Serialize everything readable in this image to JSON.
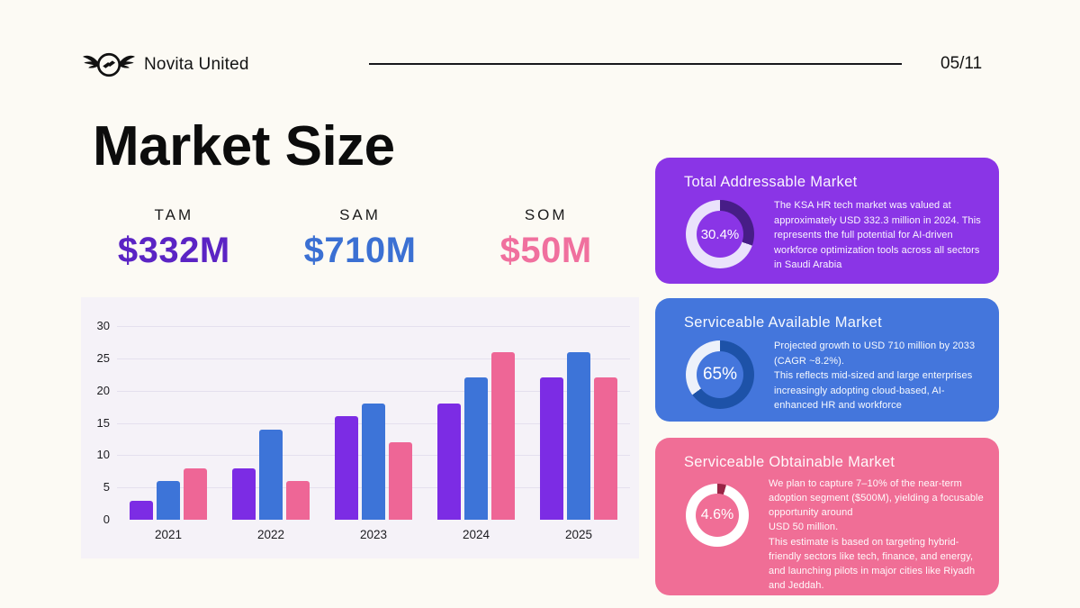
{
  "header": {
    "brand": "Novita United",
    "page_number": "05/11"
  },
  "title": "Market Size",
  "metrics": [
    {
      "label": "TAM",
      "value": "$332M",
      "color": "#5b24c4"
    },
    {
      "label": "SAM",
      "value": "$710M",
      "color": "#3b70d3"
    },
    {
      "label": "SOM",
      "value": "$50M",
      "color": "#f0709e"
    }
  ],
  "chart_data": {
    "type": "bar",
    "title": "",
    "xlabel": "",
    "ylabel": "",
    "categories": [
      "2021",
      "2022",
      "2023",
      "2024",
      "2025"
    ],
    "series": [
      {
        "name": "TAM",
        "color": "#7c2ce4",
        "values": [
          3,
          8,
          16,
          18,
          22
        ]
      },
      {
        "name": "SAM",
        "color": "#3d74d8",
        "values": [
          6,
          14,
          18,
          22,
          26
        ]
      },
      {
        "name": "SOM",
        "color": "#ee6696",
        "values": [
          8,
          6,
          12,
          26,
          22
        ]
      }
    ],
    "ylim": [
      0,
      30
    ],
    "yticks": [
      0,
      5,
      10,
      15,
      20,
      25,
      30
    ],
    "grid": true,
    "legend": "none",
    "background": "#f5f2f8"
  },
  "cards": [
    {
      "title": "Total Addressable Market",
      "percent_label": "30.4%",
      "percent_value": 30.4,
      "bg": "#8a35e6",
      "ring_track": "#eae2fb",
      "ring_arc": "#471d87",
      "body": "The KSA HR tech market was valued at approximately USD 332.3 million in 2024. This represents the full potential for AI-driven workforce optimization tools across all sectors in Saudi Arabia"
    },
    {
      "title": "Serviceable Available Market",
      "percent_label": "65%",
      "percent_value": 65,
      "bg": "#4476dc",
      "ring_track": "#edf1fa",
      "ring_arc": "#1d52a8",
      "body": "Projected growth to USD 710 million by 2033 (CAGR ~8.2%).\nThis reflects mid-sized and large enterprises increasingly adopting cloud-based, AI-enhanced HR and workforce"
    },
    {
      "title": "Serviceable Obtainable Market",
      "percent_label": "4.6%",
      "percent_value": 4.6,
      "bg": "#f06e96",
      "ring_track": "#ffffff",
      "ring_arc": "#992445",
      "body": "We plan to capture 7–10% of the near-term adoption segment ($500M), yielding a focusable opportunity around\nUSD 50 million.\n This estimate is based on targeting hybrid-friendly sectors like tech, finance, and energy, and launching pilots in major cities like Riyadh and Jeddah."
    }
  ]
}
